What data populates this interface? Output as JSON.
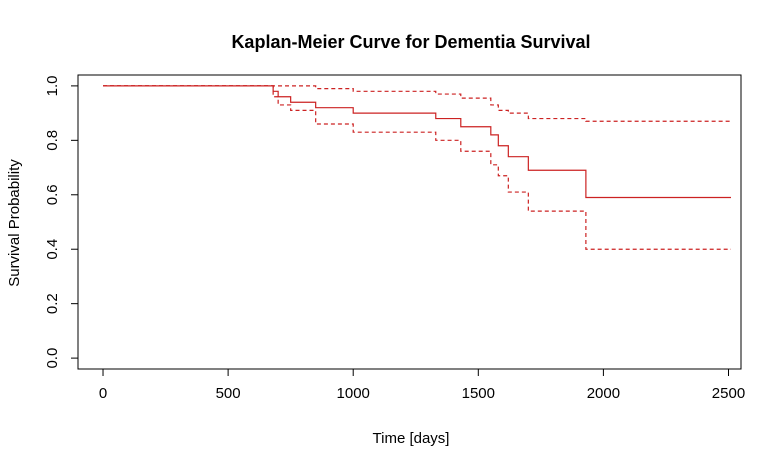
{
  "chart_data": {
    "type": "line",
    "title": "Kaplan-Meier Curve for Dementia Survival",
    "xlabel": "Time [days]",
    "ylabel": "Survival Probability",
    "xlim": [
      -100,
      2550
    ],
    "ylim": [
      -0.04,
      1.04
    ],
    "xticks": [
      0,
      500,
      1000,
      1500,
      2000,
      2500
    ],
    "xtick_labels": [
      "0",
      "500",
      "1000",
      "1500",
      "2000",
      "2500"
    ],
    "yticks": [
      0.0,
      0.2,
      0.4,
      0.6,
      0.8,
      1.0
    ],
    "ytick_labels": [
      "0.0",
      "0.2",
      "0.4",
      "0.6",
      "0.8",
      "1.0"
    ],
    "grid": false,
    "legend": "none",
    "color": "#cc2222",
    "series": [
      {
        "role": "estimate",
        "style": "solid",
        "x": [
          0,
          680,
          700,
          750,
          850,
          1000,
          1330,
          1430,
          1550,
          1580,
          1620,
          1700,
          1930,
          2510
        ],
        "y": [
          1.0,
          0.98,
          0.96,
          0.94,
          0.92,
          0.9,
          0.88,
          0.85,
          0.82,
          0.78,
          0.74,
          0.69,
          0.59,
          0.59
        ]
      },
      {
        "role": "upper",
        "style": "dashed",
        "x": [
          0,
          680,
          850,
          1000,
          1330,
          1430,
          1550,
          1580,
          1620,
          1700,
          1930,
          2510
        ],
        "y": [
          1.0,
          1.0,
          0.99,
          0.98,
          0.97,
          0.955,
          0.93,
          0.91,
          0.9,
          0.88,
          0.87,
          0.87
        ],
        "drop_first_at": 2
      },
      {
        "role": "lower",
        "style": "dashed",
        "x": [
          0,
          680,
          700,
          750,
          850,
          1000,
          1330,
          1430,
          1550,
          1580,
          1620,
          1700,
          1930,
          2510
        ],
        "y": [
          1.0,
          0.96,
          0.93,
          0.91,
          0.86,
          0.83,
          0.8,
          0.76,
          0.71,
          0.67,
          0.61,
          0.54,
          0.4,
          0.4
        ]
      }
    ]
  }
}
